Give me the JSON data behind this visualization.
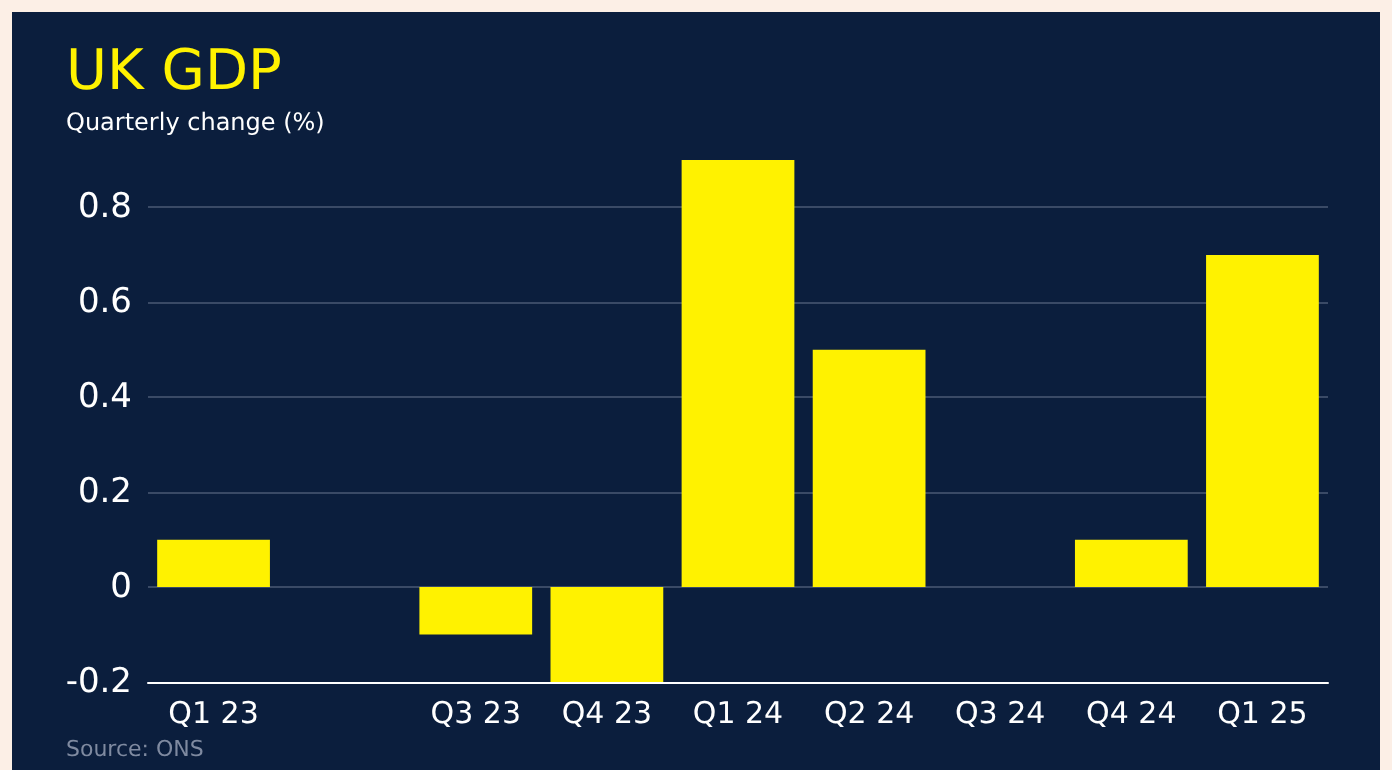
{
  "chart_data": {
    "type": "bar",
    "title": "UK GDP",
    "subtitle": "Quarterly change (%)",
    "categories": [
      "Q1 23",
      null,
      "Q3 23",
      "Q4 23",
      "Q1 24",
      "Q2 24",
      "Q3 24",
      "Q4 24",
      "Q1 25"
    ],
    "values": [
      0.1,
      0,
      -0.1,
      -0.2,
      0.9,
      0.5,
      0,
      0.1,
      0.7
    ],
    "color": "#fff200",
    "ylim": [
      -0.2,
      0.9
    ],
    "yticks": [
      -0.2,
      0,
      0.2,
      0.4,
      0.6,
      0.8
    ],
    "grid": "y",
    "annotations": [
      "Source: ONS"
    ]
  }
}
